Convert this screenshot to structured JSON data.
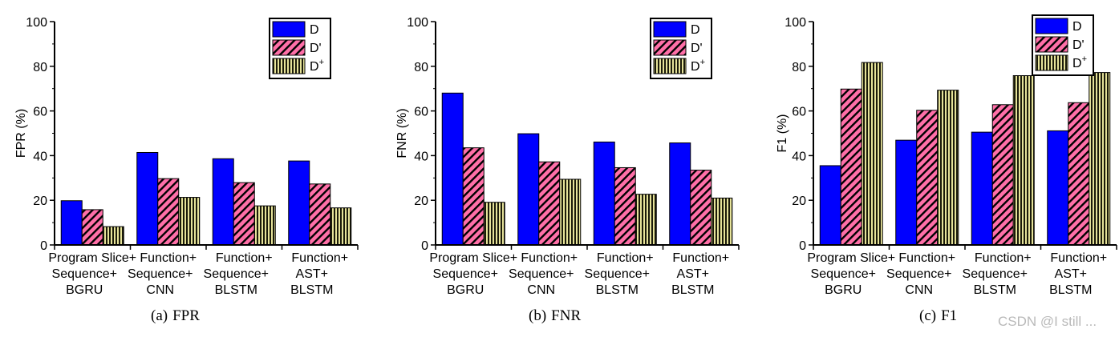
{
  "chart_data": [
    {
      "type": "bar",
      "id": "fpr",
      "title": "FPR",
      "caption_letter": "(a)",
      "ylabel": "FPR (%)",
      "ylim": [
        0,
        100
      ],
      "yticks": [
        0,
        20,
        40,
        60,
        80,
        100
      ],
      "categories": [
        [
          "Program Slice+",
          "Sequence+",
          "BGRU"
        ],
        [
          "Function+",
          "Sequence+",
          "CNN"
        ],
        [
          "Function+",
          "Sequence+",
          "BLSTM"
        ],
        [
          "Function+",
          "AST+",
          "BLSTM"
        ]
      ],
      "series": [
        {
          "name": "D",
          "values": [
            19.8,
            41.4,
            38.6,
            37.6
          ]
        },
        {
          "name": "D'",
          "values": [
            15.8,
            29.7,
            27.9,
            27.3
          ]
        },
        {
          "name": "D+",
          "values": [
            8.2,
            21.3,
            17.5,
            16.6
          ]
        }
      ],
      "legend_position": "top-right"
    },
    {
      "type": "bar",
      "id": "fnr",
      "title": "FNR",
      "caption_letter": "(b)",
      "ylabel": "FNR (%)",
      "ylim": [
        0,
        100
      ],
      "yticks": [
        0,
        20,
        40,
        60,
        80,
        100
      ],
      "categories": [
        [
          "Program Slice+",
          "Sequence+",
          "BGRU"
        ],
        [
          "Function+",
          "Sequence+",
          "CNN"
        ],
        [
          "Function+",
          "Sequence+",
          "BLSTM"
        ],
        [
          "Function+",
          "AST+",
          "BLSTM"
        ]
      ],
      "series": [
        {
          "name": "D",
          "values": [
            68.0,
            49.8,
            46.1,
            45.7
          ]
        },
        {
          "name": "D'",
          "values": [
            43.5,
            37.2,
            34.6,
            33.5
          ]
        },
        {
          "name": "D+",
          "values": [
            19.1,
            29.4,
            22.7,
            21.0
          ]
        }
      ],
      "legend_position": "top-right"
    },
    {
      "type": "bar",
      "id": "f1",
      "title": "F1",
      "caption_letter": "(c)",
      "ylabel": "F1 (%)",
      "ylim": [
        0,
        100
      ],
      "yticks": [
        0,
        20,
        40,
        60,
        80,
        100
      ],
      "categories": [
        [
          "Program Slice+",
          "Sequence+",
          "BGRU"
        ],
        [
          "Function+",
          "Sequence+",
          "CNN"
        ],
        [
          "Function+",
          "Sequence+",
          "BLSTM"
        ],
        [
          "Function+",
          "AST+",
          "BLSTM"
        ]
      ],
      "series": [
        {
          "name": "D",
          "values": [
            35.5,
            46.9,
            50.5,
            51.1
          ]
        },
        {
          "name": "D'",
          "values": [
            69.8,
            60.3,
            62.8,
            63.7
          ]
        },
        {
          "name": "D+",
          "values": [
            81.7,
            69.3,
            75.8,
            77.2
          ]
        }
      ],
      "legend_position": "top-right"
    }
  ],
  "series_colors": {
    "D": "#0000ff",
    "D'": "#ff6fa8",
    "D+": "#6e6e2a"
  },
  "watermark": "CSDN @I still ..."
}
